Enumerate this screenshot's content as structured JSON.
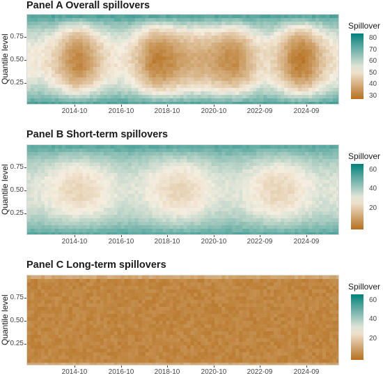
{
  "chart_data": [
    {
      "type": "heatmap",
      "title": "Panel A Overall spillovers",
      "xlabel": "",
      "ylabel": "Quantile level",
      "x_ticks": [
        "2014-10",
        "2016-10",
        "2018-10",
        "2020-10",
        "2022-09",
        "2024-09"
      ],
      "y_ticks": [
        "0.25",
        "0.50",
        "0.75"
      ],
      "ylim": [
        0.02,
        0.98
      ],
      "legend": {
        "title": "Spillover",
        "ticks": [
          "80",
          "70",
          "60",
          "50",
          "40",
          "30"
        ],
        "range": [
          27,
          84
        ],
        "placement": "right"
      },
      "colors": {
        "low": "#b5701f",
        "mid": "#f5eee0",
        "high": "#01817c"
      },
      "middle_band_value_by_period": [
        {
          "period": "2013-2015",
          "value": 32
        },
        {
          "period": "2016-2017",
          "value": 30
        },
        {
          "period": "2019-2020",
          "value": 40
        },
        {
          "period": "2021-2022",
          "value": 33
        },
        {
          "period": "2023-2025",
          "value": 29
        }
      ],
      "tails_value": 76
    },
    {
      "type": "heatmap",
      "title": "Panel B Short-term spillovers",
      "xlabel": "",
      "ylabel": "Quantile level",
      "x_ticks": [
        "2014-10",
        "2016-10",
        "2018-10",
        "2020-10",
        "2022-09",
        "2024-09"
      ],
      "y_ticks": [
        "0.25",
        "0.50",
        "0.75"
      ],
      "ylim": [
        0.02,
        0.98
      ],
      "legend": {
        "title": "Spillover",
        "ticks": [
          "60",
          "40",
          "20"
        ],
        "range": [
          5,
          74
        ],
        "placement": "right"
      },
      "colors": {
        "low": "#b5701f",
        "mid": "#f5eee0",
        "high": "#01817c"
      },
      "middle_band_value": 30,
      "tails_value": 62
    },
    {
      "type": "heatmap",
      "title": "Panel C Long-term spillovers",
      "xlabel": "",
      "ylabel": "Quantile level",
      "x_ticks": [
        "2014-10",
        "2016-10",
        "2018-10",
        "2020-10",
        "2022-09",
        "2024-09"
      ],
      "y_ticks": [
        "0.25",
        "0.50",
        "0.75"
      ],
      "ylim": [
        0.02,
        0.98
      ],
      "legend": {
        "title": "Spillover",
        "ticks": [
          "60",
          "40",
          "20"
        ],
        "range": [
          5,
          74
        ],
        "placement": "right"
      },
      "colors": {
        "low": "#b5701f",
        "mid": "#f5eee0",
        "high": "#01817c"
      },
      "typical_value": 8
    }
  ]
}
